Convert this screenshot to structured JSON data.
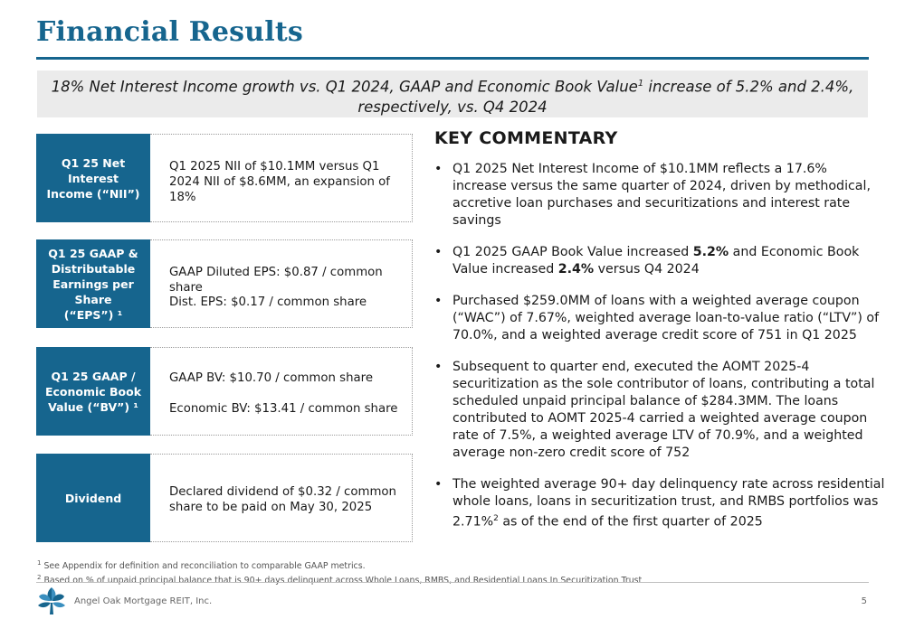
{
  "page": {
    "title": "Financial Results",
    "banner_line1_pre": "18% Net Interest Income growth vs. Q1 2024, GAAP and Economic Book Value",
    "banner_sup": "1",
    "banner_line1_post": " increase  of 5.2% and 2.4%,",
    "banner_line2": "respectively, vs. Q4 2024"
  },
  "metrics": [
    {
      "label_line1": "Q1 25 Net Interest",
      "label_line2": "Income (“NII”)",
      "text1": "Q1 2025 NII of $10.1MM versus Q1 2024 NII of $8.6MM, an expansion  of 18%"
    },
    {
      "label_line1": "Q1 25 GAAP &",
      "label_line2": "Distributable",
      "label_line3": "Earnings per Share",
      "label_line4": "(“EPS”) ¹",
      "text1": "GAAP Diluted EPS: $0.87 / common share",
      "text2": "Dist. EPS: $0.17 / common share"
    },
    {
      "label_line1": "Q1 25 GAAP /",
      "label_line2": "Economic Book",
      "label_line3": "Value (“BV”) ¹",
      "text1": "GAAP BV: $10.70 / common share",
      "text2": "Economic BV: $13.41 / common share"
    },
    {
      "label_line1": "Dividend",
      "text1": "Declared dividend of $0.32 / common share to be paid on May 30, 2025"
    }
  ],
  "commentary": {
    "title": "KEY COMMENTARY",
    "bullet_glyph": "•",
    "b1": "Q1 2025 Net Interest Income of $10.1MM reflects a 17.6% increase versus the same quarter of 2024, driven by methodical, accretive loan purchases and securitizations and interest rate savings",
    "b2_a": "Q1 2025 GAAP Book Value increased ",
    "b2_b": "5.2%",
    "b2_c": " and Economic Book Value increased ",
    "b2_d": "2.4%",
    "b2_e": " versus Q4 2024",
    "b3": "Purchased $259.0MM of loans with a weighted average coupon (“WAC”) of 7.67%, weighted average loan-to-value ratio (“LTV”) of 70.0%, and a weighted average credit score of 751 in Q1 2025",
    "b4": "Subsequent to quarter end, executed the AOMT 2025-4 securitization as the sole contributor of loans, contributing a total scheduled unpaid principal balance of $284.3MM. The loans contributed to AOMT 2025-4 carried a weighted average coupon rate of 7.5%, a weighted average LTV of 70.9%, and a weighted average non-zero credit score of 752",
    "b5_a": "The weighted average 90+ day delinquency rate across residential whole loans, loans in securitization trust, and RMBS portfolios was 2.71%",
    "b5_sup": "2",
    "b5_b": " as of the end of the first quarter of 2025"
  },
  "footnotes": {
    "n1_mark": "1",
    "n1": " See Appendix for definition and reconciliation to comparable GAAP metrics.",
    "n2_mark": "2",
    "n2": " Based on % of unpaid principal balance that is 90+ days delinquent across Whole Loans, RMBS, and Residential Loans In Securitization Trust"
  },
  "footer": {
    "company": "Angel Oak Mortgage REIT, Inc.",
    "page_number": "5",
    "logo_icon": "angel-oak-logo-icon"
  },
  "colors": {
    "brand_blue": "#16658e",
    "banner_gray": "#ebebeb"
  }
}
